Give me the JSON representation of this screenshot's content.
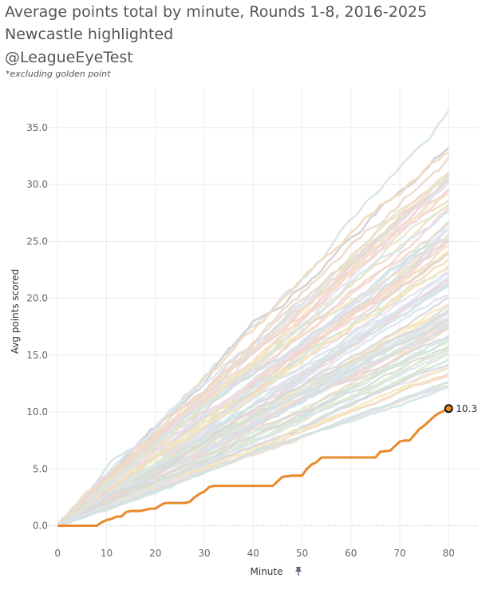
{
  "header": {
    "title_line1": "Average points total by minute, Rounds 1-8, 2016-2025",
    "title_line2": "Newcastle highlighted",
    "title_line3": "@LeagueEyeTest",
    "note": "*excluding golden point"
  },
  "colors": {
    "highlight": "#e8892c",
    "grid": "#ececec",
    "zero_line": "#b5b5b5",
    "background_palette": [
      "#d4e3ea",
      "#f3d3d6",
      "#f2dcc2",
      "#dfe8cf",
      "#e9e1ee",
      "#d8d8d8",
      "#f4e6b8",
      "#cfe3df",
      "#ead7c9",
      "#dbe3f0"
    ]
  },
  "chart_data": {
    "type": "line",
    "xlabel": "Minute",
    "ylabel": "Avg points scored",
    "xlim": [
      -2,
      86
    ],
    "ylim": [
      -2.0,
      38.5
    ],
    "x_ticks": [
      "0",
      "10",
      "20",
      "30",
      "40",
      "50",
      "60",
      "70",
      "80"
    ],
    "y_ticks": [
      "0.0",
      "5.0",
      "10.0",
      "15.0",
      "20.0",
      "25.0",
      "30.0",
      "35.0"
    ],
    "grid": true,
    "highlight_series": {
      "points": [
        [
          0,
          0
        ],
        [
          8,
          0
        ],
        [
          9,
          0.3
        ],
        [
          10,
          0.5
        ],
        [
          11,
          0.6
        ],
        [
          12,
          0.8
        ],
        [
          13,
          0.8
        ],
        [
          14,
          1.2
        ],
        [
          15,
          1.3
        ],
        [
          17,
          1.3
        ],
        [
          18,
          1.4
        ],
        [
          19,
          1.5
        ],
        [
          20,
          1.5
        ],
        [
          21,
          1.8
        ],
        [
          22,
          2.0
        ],
        [
          23,
          2.0
        ],
        [
          24,
          2.0
        ],
        [
          25,
          2.0
        ],
        [
          26,
          2.0
        ],
        [
          27,
          2.1
        ],
        [
          28,
          2.5
        ],
        [
          29,
          2.8
        ],
        [
          30,
          3.0
        ],
        [
          31,
          3.4
        ],
        [
          32,
          3.5
        ],
        [
          34,
          3.5
        ],
        [
          36,
          3.5
        ],
        [
          38,
          3.5
        ],
        [
          40,
          3.5
        ],
        [
          42,
          3.5
        ],
        [
          44,
          3.5
        ],
        [
          45,
          3.9
        ],
        [
          46,
          4.3
        ],
        [
          48,
          4.4
        ],
        [
          50,
          4.4
        ],
        [
          51,
          5.0
        ],
        [
          52,
          5.4
        ],
        [
          53,
          5.6
        ],
        [
          54,
          6.0
        ],
        [
          56,
          6.0
        ],
        [
          58,
          6.0
        ],
        [
          60,
          6.0
        ],
        [
          62,
          6.0
        ],
        [
          64,
          6.0
        ],
        [
          65,
          6.0
        ],
        [
          66,
          6.5
        ],
        [
          68,
          6.6
        ],
        [
          69,
          7.0
        ],
        [
          70,
          7.4
        ],
        [
          71,
          7.5
        ],
        [
          72,
          7.5
        ],
        [
          73,
          8.0
        ],
        [
          74,
          8.5
        ],
        [
          75,
          8.8
        ],
        [
          76,
          9.2
        ],
        [
          77,
          9.6
        ],
        [
          78,
          9.9
        ],
        [
          79,
          10.1
        ],
        [
          80,
          10.3
        ]
      ]
    },
    "highlight_end_label": "10.3",
    "background_series": {
      "count": 90,
      "final_min": 9.5,
      "final_max": 36.5,
      "max_minute": 80
    }
  },
  "axis": {
    "x_title": "Minute",
    "y_title": "Avg points scored"
  }
}
